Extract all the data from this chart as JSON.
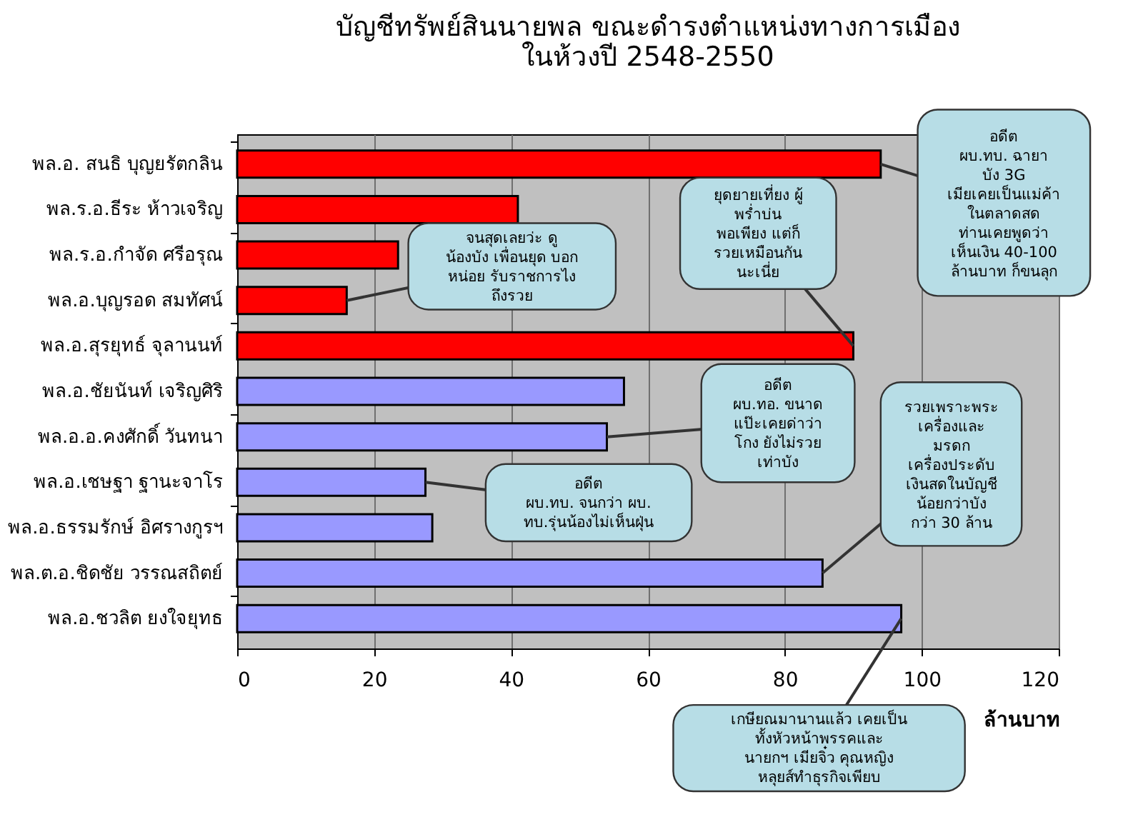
{
  "chart_data": {
    "type": "bar",
    "orientation": "horizontal",
    "title": "บัญชีทรัพย์สินนายพล ขณะดำรงตำแหน่งทางการเมือง\nในห้วงปี 2548-2550",
    "xlabel": "ล้านบาท",
    "categories": [
      "พล.อ. สนธิ บุญยรัตกลิน",
      "พล.ร.อ.ธีระ ห้าวเจริญ",
      "พล.ร.อ.กำจัด ศรีอรุณ",
      "พล.อ.บุญรอด สมทัศน์",
      "พล.อ.สุรยุทธ์ จุลานนท์",
      "พล.อ.ชัยนันท์ เจริญศิริ",
      "พล.อ.อ.คงศักดิ์ วันทนา",
      "พล.อ.เชษฐา ฐานะจาโร",
      "พล.อ.ธรรมรักษ์ อิศรางกูรฯ",
      "พล.ต.อ.ชิดชัย วรรณสถิตย์",
      "พล.อ.ชวลิต ยงใจยุทธ"
    ],
    "values": [
      94,
      41,
      23.5,
      16,
      90,
      56.5,
      54,
      27.5,
      28.5,
      85.5,
      97
    ],
    "colors": [
      "#ff0000",
      "#ff0000",
      "#ff0000",
      "#ff0000",
      "#ff0000",
      "#9999ff",
      "#9999ff",
      "#9999ff",
      "#9999ff",
      "#9999ff",
      "#9999ff"
    ],
    "xlim": [
      0,
      120
    ],
    "xticks": [
      0,
      20,
      40,
      60,
      80,
      100,
      120
    ],
    "grid": "x",
    "annotations": [
      {
        "text": "จนสุดเลยว่ะ ดู\nน้องบัง เพื่อนยุด บอก\nหน่อย รับราชการไง\nถึงรวย",
        "x": 16,
        "y": "พล.อ.บุญรอด สมทัศน์"
      },
      {
        "text": "ยุดยายเที่ยง ผู้\nพร่ำบ่น\nพอเพียง แต่ก็\nรวยเหมือนกัน\nนะเนี่ย",
        "x": 90,
        "y": "พล.อ.สุรยุทธ์ จุลานนท์"
      },
      {
        "text": "อดีต\nผบ.ทบ. ฉายา\nบัง 3G\nเมียเคยเป็นแม่ค้า\nในตลาดสด\nท่านเคยพูดว่า\nเห็นเงิน 40-100\nล้านบาท ก็ขนลุก",
        "x": 94,
        "y": "พล.อ. สนธิ บุญยรัตกลิน"
      },
      {
        "text": "อดีต\nผบ.ทอ. ขนาด\nแป๊ะเคยด่าว่า\nโกง ยังไม่รวย\nเท่าบัง",
        "x": 54,
        "y": "พล.อ.อ.คงศักดิ์ วันทนา"
      },
      {
        "text": "อดีต\nผบ.ทบ. จนกว่า ผบ.\nทบ.รุ่นน้องไม่เห็นฝุ่น",
        "x": 27.5,
        "y": "พล.อ.เชษฐา ฐานะจาโร"
      },
      {
        "text": "รวยเพราะพระ\nเครื่องและ\nมรดก\nเครื่องประดับ\nเงินสดในบัญชี\nน้อยกว่าบัง\nกว่า 30 ล้าน",
        "x": 85.5,
        "y": "พล.ต.อ.ชิดชัย วรรณสถิตย์"
      },
      {
        "text": "เกษียณมานานแล้ว เคยเป็น\nทั้งหัวหน้าพรรคและ\nนายกฯ เมียจิ๋ว คุณหญิง\nหลุยส์ทำธุรกิจเพียบ",
        "x": 97,
        "y": "พล.อ.ชวลิต ยงใจยุทธ"
      }
    ]
  }
}
